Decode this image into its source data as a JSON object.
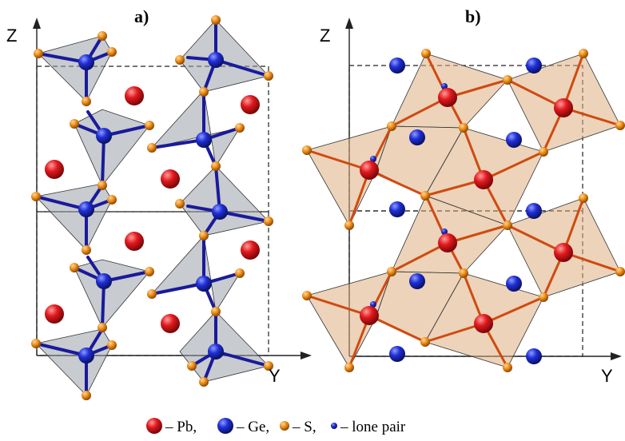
{
  "panels": [
    {
      "label": "a)",
      "z_axis": "Z",
      "y_axis": "Y"
    },
    {
      "label": "b)",
      "z_axis": "Z",
      "y_axis": "Y"
    }
  ],
  "legend": [
    {
      "atom": "pb",
      "text": "– Pb,",
      "color": "#e0191d"
    },
    {
      "atom": "ge",
      "text": "– Ge,",
      "color": "#1f2fd6"
    },
    {
      "atom": "s",
      "text": "– S,",
      "color": "#f08c14"
    },
    {
      "atom": "lone-pair",
      "text": "– lone pair",
      "color": "#1f2fd6"
    }
  ],
  "colors": {
    "pb": "#e0191d",
    "ge": "#1f2fd6",
    "s": "#f08c14",
    "tetra_a": "#9aa0a8",
    "tetra_b": "#dcae82"
  }
}
